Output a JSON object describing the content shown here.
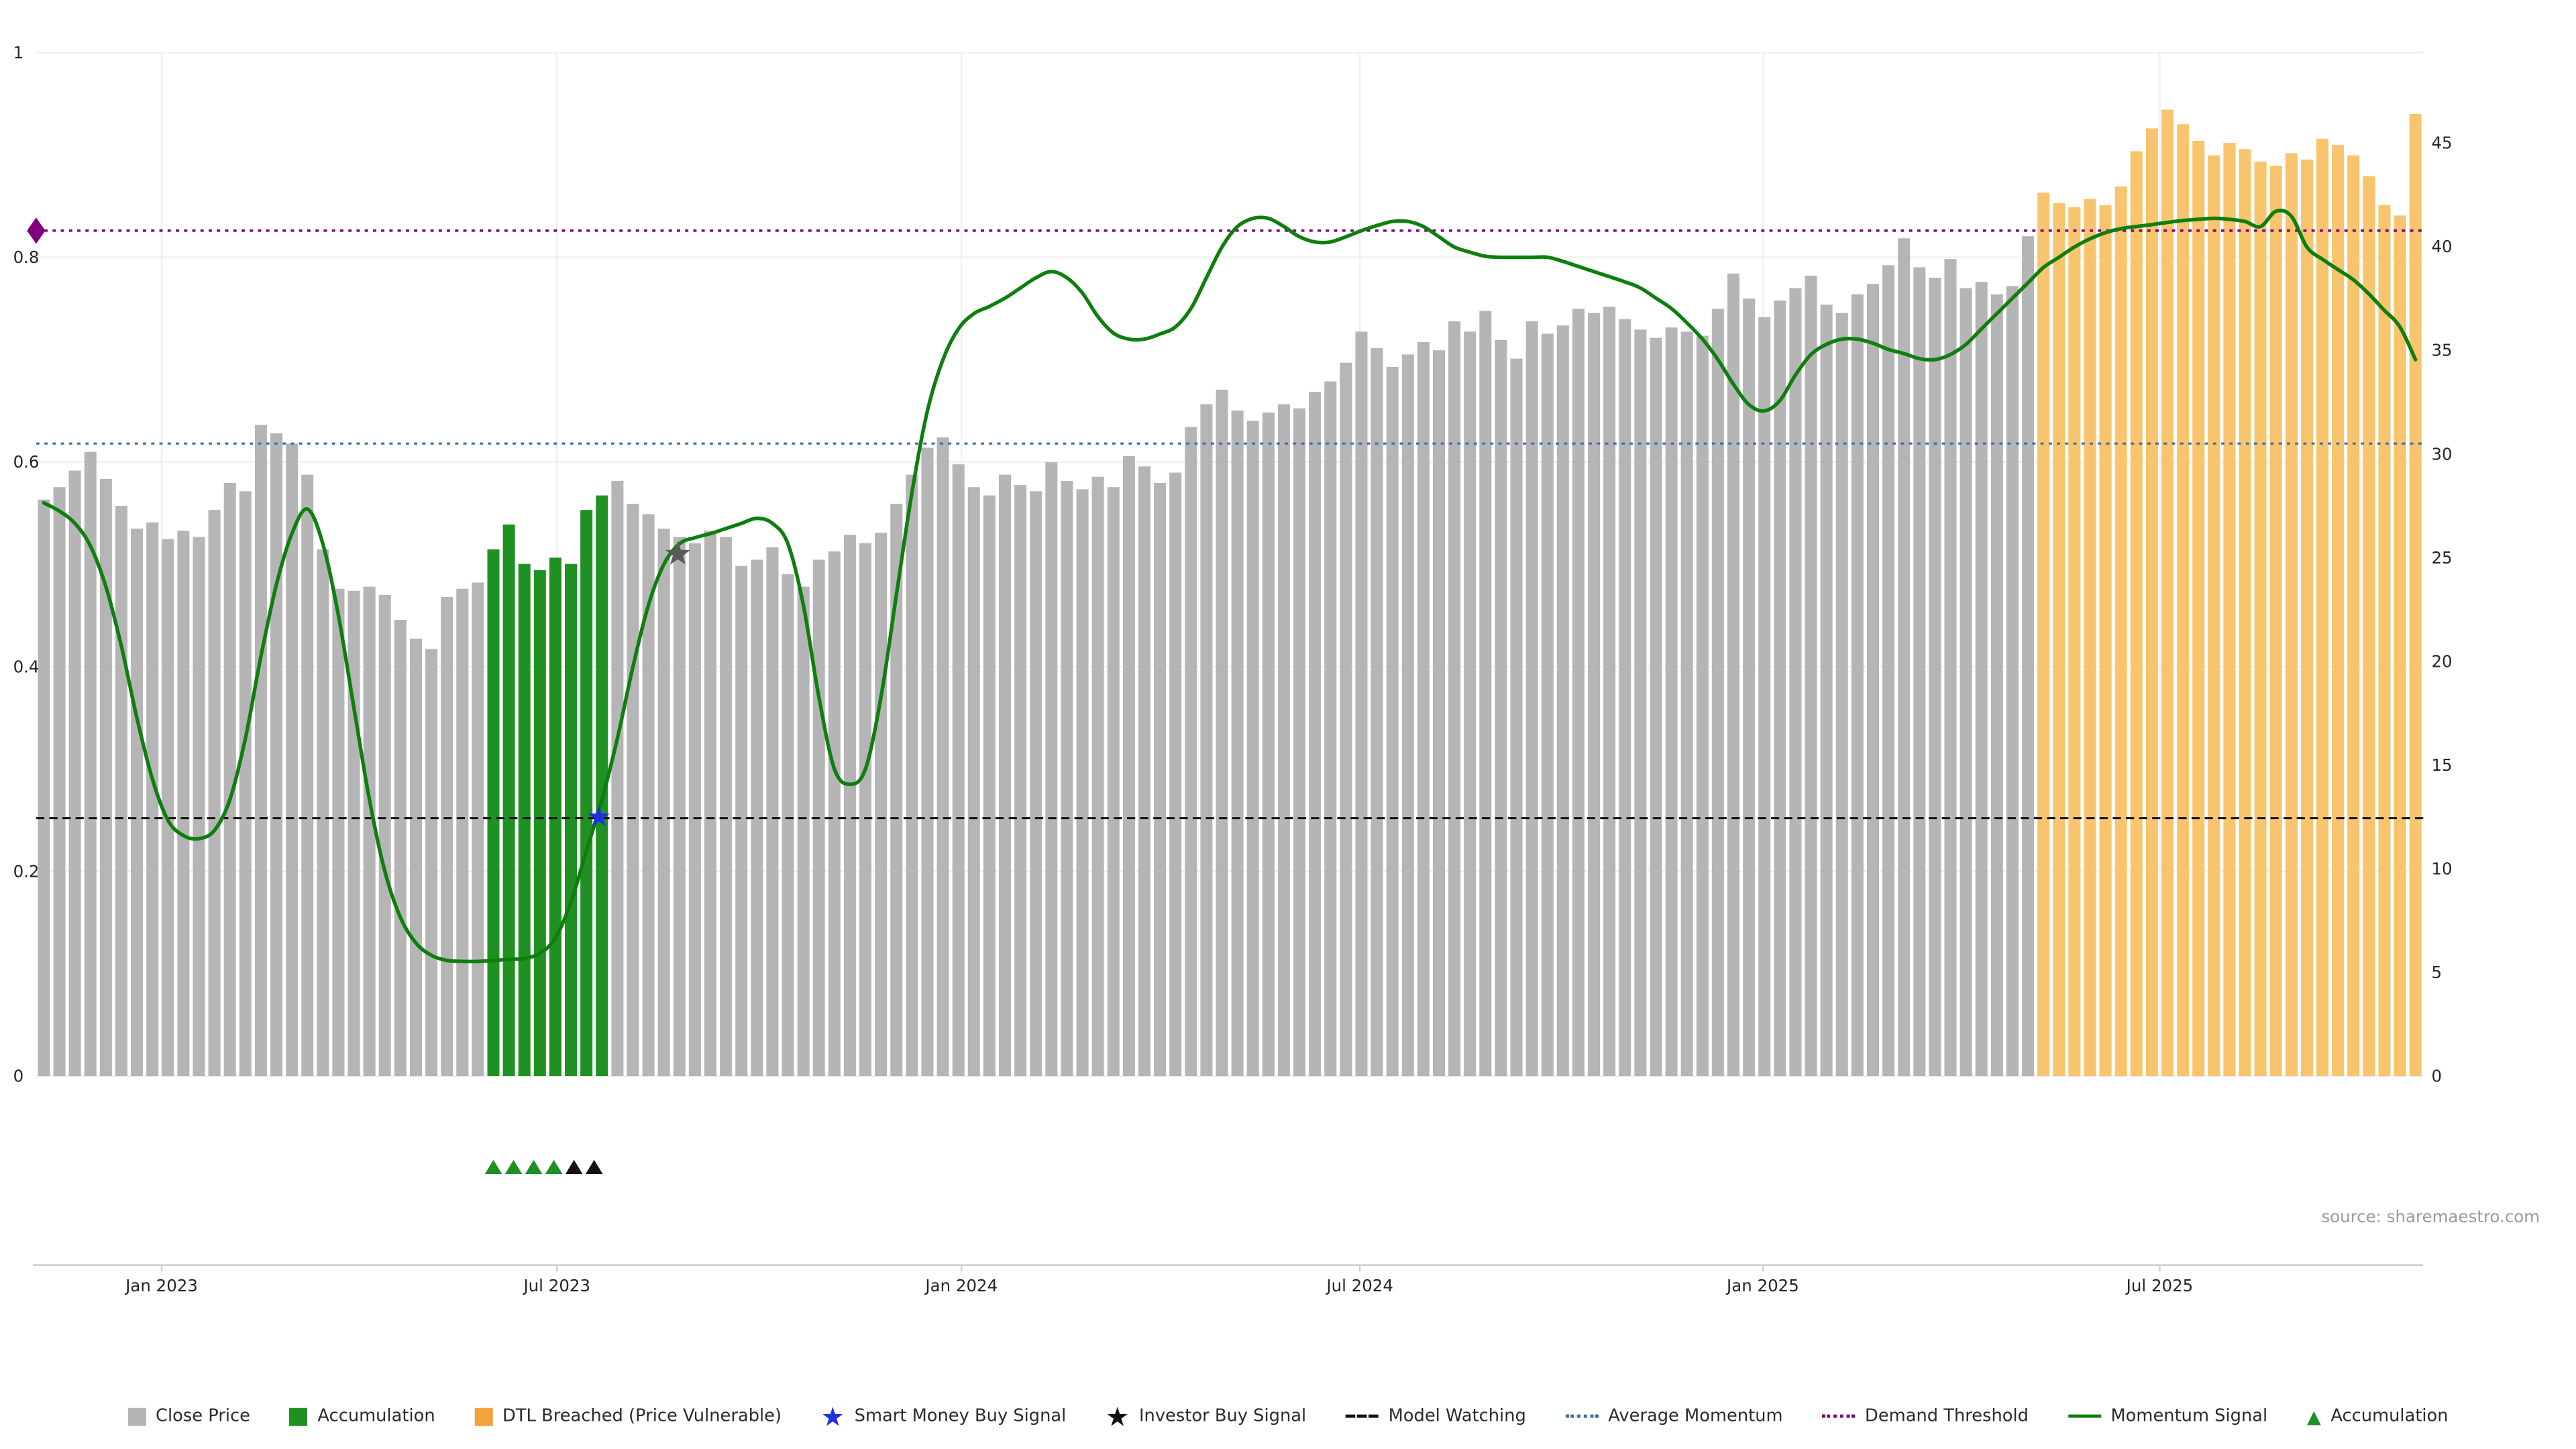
{
  "chart_data": {
    "type": "bar",
    "title": "",
    "source": "source: sharemaestro.com",
    "left_axis": {
      "ticks": [
        0,
        0.2,
        0.4,
        0.6,
        0.8,
        1
      ],
      "range": [
        0,
        1
      ]
    },
    "right_axis": {
      "ticks": [
        0,
        5,
        10,
        15,
        20,
        25,
        30,
        35,
        40,
        45
      ],
      "range": [
        0,
        49.5
      ]
    },
    "x_ticks": [
      {
        "label": "Jan 2023",
        "index": 7.6
      },
      {
        "label": "Jul 2023",
        "index": 33.1
      },
      {
        "label": "Jan 2024",
        "index": 59.2
      },
      {
        "label": "Jul 2024",
        "index": 84.9
      },
      {
        "label": "Jan 2025",
        "index": 110.9
      },
      {
        "label": "Jul 2025",
        "index": 136.5
      }
    ],
    "bars": {
      "name": "Close Price (weekly)",
      "values": [
        27.8,
        28.4,
        29.2,
        30.1,
        28.8,
        27.5,
        26.4,
        26.7,
        25.9,
        26.3,
        26.0,
        27.3,
        28.6,
        28.2,
        31.4,
        31.0,
        30.5,
        29.0,
        25.4,
        23.5,
        23.4,
        23.6,
        23.2,
        22.0,
        21.1,
        20.6,
        23.1,
        23.5,
        23.8,
        25.4,
        26.6,
        24.7,
        24.4,
        25.0,
        24.7,
        27.3,
        28.0,
        28.7,
        27.6,
        27.1,
        26.4,
        26.0,
        25.7,
        26.3,
        26.0,
        24.6,
        24.9,
        25.5,
        24.2,
        23.6,
        24.9,
        25.3,
        26.1,
        25.7,
        26.2,
        27.6,
        29.0,
        30.3,
        30.8,
        29.5,
        28.4,
        28.0,
        29.0,
        28.5,
        28.2,
        29.6,
        28.7,
        28.3,
        28.9,
        28.4,
        29.9,
        29.4,
        28.6,
        29.1,
        31.3,
        32.4,
        33.1,
        32.1,
        31.6,
        32.0,
        32.4,
        32.2,
        33.0,
        33.5,
        34.4,
        35.9,
        35.1,
        34.2,
        34.8,
        35.4,
        35.0,
        36.4,
        35.9,
        36.9,
        35.5,
        34.6,
        36.4,
        35.8,
        36.2,
        37.0,
        36.8,
        37.1,
        36.5,
        36.0,
        35.6,
        36.1,
        35.9,
        35.7,
        37.0,
        38.7,
        37.5,
        36.6,
        37.4,
        38.0,
        38.6,
        37.2,
        36.8,
        37.7,
        38.2,
        39.1,
        40.4,
        39.0,
        38.5,
        39.4,
        38.0,
        38.3,
        37.7,
        38.1,
        40.5,
        42.6,
        42.1,
        41.9,
        42.3,
        42.0,
        42.9,
        44.6,
        45.7,
        46.6,
        45.9,
        45.1,
        44.4,
        45.0,
        44.7,
        44.1,
        43.9,
        44.5,
        44.2,
        45.2,
        44.9,
        44.4,
        43.4,
        42.0,
        41.5,
        46.4
      ],
      "segments": [
        {
          "from": 29,
          "to": 36,
          "type": "accumulation"
        },
        {
          "from": 129,
          "to": 153,
          "type": "dtl_breached"
        }
      ]
    },
    "momentum": {
      "name": "Momentum Signal",
      "values": [
        0.56,
        0.552,
        0.54,
        0.518,
        0.478,
        0.42,
        0.35,
        0.29,
        0.25,
        0.235,
        0.232,
        0.24,
        0.27,
        0.33,
        0.41,
        0.48,
        0.53,
        0.554,
        0.52,
        0.45,
        0.36,
        0.27,
        0.2,
        0.155,
        0.13,
        0.118,
        0.113,
        0.112,
        0.112,
        0.113,
        0.114,
        0.115,
        0.12,
        0.135,
        0.17,
        0.22,
        0.27,
        0.33,
        0.4,
        0.46,
        0.5,
        0.52,
        0.526,
        0.53,
        0.535,
        0.54,
        0.545,
        0.54,
        0.52,
        0.46,
        0.37,
        0.3,
        0.285,
        0.3,
        0.37,
        0.47,
        0.57,
        0.65,
        0.7,
        0.73,
        0.745,
        0.752,
        0.76,
        0.77,
        0.78,
        0.786,
        0.78,
        0.765,
        0.742,
        0.726,
        0.72,
        0.72,
        0.725,
        0.732,
        0.75,
        0.78,
        0.81,
        0.83,
        0.838,
        0.838,
        0.83,
        0.82,
        0.815,
        0.815,
        0.82,
        0.826,
        0.831,
        0.835,
        0.835,
        0.83,
        0.82,
        0.81,
        0.805,
        0.801,
        0.8,
        0.8,
        0.8,
        0.8,
        0.796,
        0.791,
        0.786,
        0.781,
        0.776,
        0.77,
        0.76,
        0.75,
        0.736,
        0.72,
        0.7,
        0.676,
        0.656,
        0.65,
        0.66,
        0.685,
        0.705,
        0.715,
        0.72,
        0.72,
        0.716,
        0.71,
        0.706,
        0.701,
        0.7,
        0.705,
        0.715,
        0.73,
        0.745,
        0.76,
        0.775,
        0.79,
        0.8,
        0.81,
        0.818,
        0.824,
        0.828,
        0.83,
        0.832,
        0.834,
        0.836,
        0.837,
        0.838,
        0.837,
        0.835,
        0.83,
        0.845,
        0.84,
        0.81,
        0.798,
        0.788,
        0.778,
        0.764,
        0.748,
        0.732,
        0.7
      ]
    },
    "hlines": [
      {
        "id": "average-momentum",
        "label": "Average Momentum",
        "value": 0.618,
        "color": "#3b6ea5",
        "style": "dotted",
        "width": 1.3
      },
      {
        "id": "demand-threshold",
        "label": "Demand Threshold",
        "value": 0.826,
        "color": "#800080",
        "style": "dotted",
        "width": 1.5
      },
      {
        "id": "model-watching",
        "label": "Model Watching",
        "value": 0.252,
        "color": "#111111",
        "style": "dashed",
        "width": 1.2
      }
    ],
    "markers": [
      {
        "id": "demand-threshold-marker",
        "shape": "diamond",
        "x_index": -0.5,
        "value": 0.826,
        "color": "#800080",
        "size": 8
      },
      {
        "id": "smart-money-buy-signal",
        "shape": "star",
        "x_index": 35.8,
        "value": 0.253,
        "color": "#2030dd",
        "size": 7
      },
      {
        "id": "investor-buy-signal",
        "shape": "star",
        "x_index": 40.9,
        "value": 0.51,
        "color": "#5a5a5a",
        "size": 8
      }
    ],
    "accumulation_markers": {
      "green_indices": [
        29,
        30.3,
        31.6,
        32.9
      ],
      "black_indices": [
        34.2,
        35.5
      ]
    },
    "colors": {
      "close_price": "#b5b5b5",
      "accumulation": "#1f9122",
      "dtl_breached": "#f8c46e",
      "momentum_line": "#0e7f0e",
      "average_momentum": "#3b6ea5",
      "demand_threshold": "#800080",
      "model_watching": "#111111",
      "smart_money": "#2030dd",
      "investor": "#5a5a5a",
      "grid": "#f0f0f0",
      "axis": "#cfcfcf",
      "tick_text": "#262626",
      "source_text": "#9a9a9a"
    },
    "legend": [
      {
        "id": "close-price",
        "icon": "square",
        "color": "#b5b5b5",
        "label": "Close Price"
      },
      {
        "id": "accumulation",
        "icon": "square",
        "color": "#1f9122",
        "label": "Accumulation"
      },
      {
        "id": "dtl-breached",
        "icon": "square",
        "color": "#f2a33c",
        "label": "DTL Breached (Price Vulnerable)"
      },
      {
        "id": "smart-money-buy-signal",
        "icon": "star",
        "color": "#2030dd",
        "label": "Smart Money Buy Signal"
      },
      {
        "id": "investor-buy-signal",
        "icon": "star",
        "color": "#111111",
        "label": "Investor Buy Signal"
      },
      {
        "id": "model-watching",
        "icon": "dashed-line",
        "color": "#111111",
        "label": "Model Watching"
      },
      {
        "id": "average-momentum",
        "icon": "dotted-line",
        "color": "#3b6ea5",
        "label": "Average Momentum"
      },
      {
        "id": "demand-threshold",
        "icon": "dotted-line",
        "color": "#800080",
        "label": "Demand Threshold"
      },
      {
        "id": "momentum-signal",
        "icon": "solid-line",
        "color": "#0e7f0e",
        "label": "Momentum Signal"
      },
      {
        "id": "accumulation-marker",
        "icon": "triangle",
        "color": "#1f9122",
        "label": "Accumulation"
      }
    ]
  }
}
